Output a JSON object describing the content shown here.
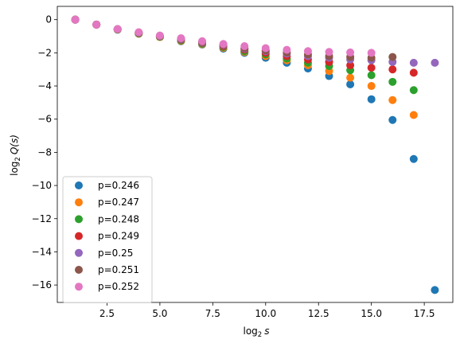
{
  "chart_data": {
    "type": "scatter",
    "title": "",
    "xlabel_base": "log",
    "xlabel_sub": "2",
    "xlabel_var": "s",
    "ylabel_base": "log",
    "ylabel_sub": "2",
    "ylabel_var": "Q(s)",
    "xlim": [
      0.15,
      18.85
    ],
    "ylim": [
      -17.05,
      0.8
    ],
    "xticks": [
      2.5,
      5.0,
      7.5,
      10.0,
      12.5,
      15.0,
      17.5
    ],
    "xtick_labels": [
      "2.5",
      "5.0",
      "7.5",
      "10.0",
      "12.5",
      "15.0",
      "17.5"
    ],
    "yticks": [
      0,
      -2,
      -4,
      -6,
      -8,
      -10,
      -12,
      -14,
      -16
    ],
    "ytick_labels": [
      "0",
      "−2",
      "−4",
      "−6",
      "−8",
      "−10",
      "−12",
      "−14",
      "−16"
    ],
    "legend_position": "lower-left",
    "grid": false,
    "series": [
      {
        "name": "p=0.246",
        "color": "#1f77b4",
        "x": [
          1,
          2,
          3,
          4,
          5,
          6,
          7,
          8,
          9,
          10,
          11,
          12,
          13,
          14,
          15,
          16,
          17,
          18
        ],
        "y": [
          0,
          -0.3,
          -0.6,
          -0.85,
          -1.05,
          -1.3,
          -1.5,
          -1.75,
          -2.0,
          -2.3,
          -2.6,
          -2.95,
          -3.4,
          -3.9,
          -4.8,
          -6.05,
          -8.4,
          -16.3
        ]
      },
      {
        "name": "p=0.247",
        "color": "#ff7f0e",
        "x": [
          1,
          2,
          3,
          4,
          5,
          6,
          7,
          8,
          9,
          10,
          11,
          12,
          13,
          14,
          15,
          16,
          17
        ],
        "y": [
          0,
          -0.3,
          -0.6,
          -0.85,
          -1.05,
          -1.28,
          -1.48,
          -1.7,
          -1.95,
          -2.2,
          -2.45,
          -2.75,
          -3.1,
          -3.5,
          -4.0,
          -4.85,
          -5.75
        ]
      },
      {
        "name": "p=0.248",
        "color": "#2ca02c",
        "x": [
          1,
          2,
          3,
          4,
          5,
          6,
          7,
          8,
          9,
          10,
          11,
          12,
          13,
          14,
          15,
          16,
          17
        ],
        "y": [
          0,
          -0.3,
          -0.6,
          -0.83,
          -1.03,
          -1.25,
          -1.45,
          -1.65,
          -1.9,
          -2.1,
          -2.35,
          -2.6,
          -2.8,
          -3.05,
          -3.35,
          -3.75,
          -4.25
        ]
      },
      {
        "name": "p=0.249",
        "color": "#d62728",
        "x": [
          1,
          2,
          3,
          4,
          5,
          6,
          7,
          8,
          9,
          10,
          11,
          12,
          13,
          14,
          15,
          16,
          17
        ],
        "y": [
          0,
          -0.3,
          -0.58,
          -0.8,
          -1.0,
          -1.2,
          -1.4,
          -1.6,
          -1.8,
          -2.0,
          -2.2,
          -2.4,
          -2.55,
          -2.75,
          -2.9,
          -3.0,
          -3.2
        ]
      },
      {
        "name": "p=0.25",
        "color": "#9467bd",
        "x": [
          1,
          2,
          3,
          4,
          5,
          6,
          7,
          8,
          9,
          10,
          11,
          12,
          13,
          14,
          15,
          16,
          17,
          18
        ],
        "y": [
          0,
          -0.3,
          -0.58,
          -0.8,
          -1.0,
          -1.18,
          -1.38,
          -1.55,
          -1.75,
          -1.9,
          -2.05,
          -2.2,
          -2.3,
          -2.4,
          -2.45,
          -2.55,
          -2.6,
          -2.6
        ]
      },
      {
        "name": "p=0.251",
        "color": "#8c564b",
        "x": [
          1,
          2,
          3,
          4,
          5,
          6,
          7,
          8,
          9,
          10,
          11,
          12,
          13,
          14,
          15,
          16
        ],
        "y": [
          0,
          -0.3,
          -0.57,
          -0.78,
          -0.98,
          -1.15,
          -1.35,
          -1.52,
          -1.7,
          -1.85,
          -1.98,
          -2.1,
          -2.2,
          -2.25,
          -2.3,
          -2.25
        ]
      },
      {
        "name": "p=0.252",
        "color": "#e377c2",
        "x": [
          1,
          2,
          3,
          4,
          5,
          6,
          7,
          8,
          9,
          10,
          11,
          12,
          13,
          14,
          15
        ],
        "y": [
          0,
          -0.3,
          -0.57,
          -0.76,
          -0.96,
          -1.12,
          -1.3,
          -1.47,
          -1.6,
          -1.72,
          -1.82,
          -1.9,
          -1.95,
          -1.98,
          -2.0
        ]
      }
    ]
  }
}
